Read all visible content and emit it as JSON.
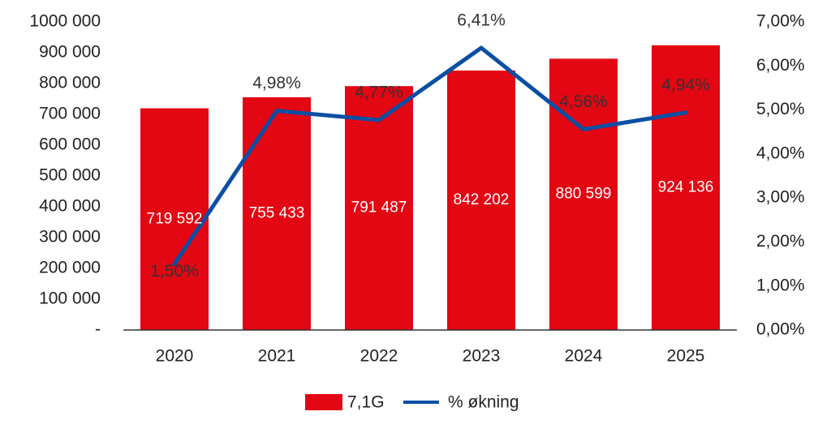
{
  "chart_data": {
    "type": "bar",
    "categories": [
      "2020",
      "2021",
      "2022",
      "2023",
      "2024",
      "2025"
    ],
    "series": [
      {
        "name": "7,1G",
        "type": "bar",
        "axis": "left",
        "values": [
          719592,
          755433,
          791487,
          842202,
          880599,
          924136
        ],
        "labels": [
          "719 592",
          "755 433",
          "791 487",
          "842 202",
          "880 599",
          "924 136"
        ]
      },
      {
        "name": "% økning",
        "type": "line",
        "axis": "right",
        "values": [
          1.5,
          4.98,
          4.77,
          6.41,
          4.56,
          4.94
        ],
        "labels": [
          "1,50%",
          "4,98%",
          "4,77%",
          "6,41%",
          "4,56%",
          "4,94%"
        ]
      }
    ],
    "left_axis": {
      "ylim": [
        0,
        1000000
      ],
      "ticks": [
        0,
        100000,
        200000,
        300000,
        400000,
        500000,
        600000,
        700000,
        800000,
        900000,
        1000000
      ],
      "tick_labels": [
        "-",
        "100 000",
        "200 000",
        "300 000",
        "400 000",
        "500 000",
        "600 000",
        "700 000",
        "800 000",
        "900 000",
        "1000 000"
      ]
    },
    "right_axis": {
      "ylim": [
        0,
        7
      ],
      "ticks": [
        0,
        1,
        2,
        3,
        4,
        5,
        6,
        7
      ],
      "tick_labels": [
        "0,00%",
        "1,00%",
        "2,00%",
        "3,00%",
        "4,00%",
        "5,00%",
        "6,00%",
        "7,00%"
      ]
    },
    "title": "",
    "xlabel": "",
    "ylabel": "",
    "grid": false,
    "legend": "bottom-center",
    "colors": {
      "bar": "#e30613",
      "line": "#0b4fa3"
    }
  }
}
